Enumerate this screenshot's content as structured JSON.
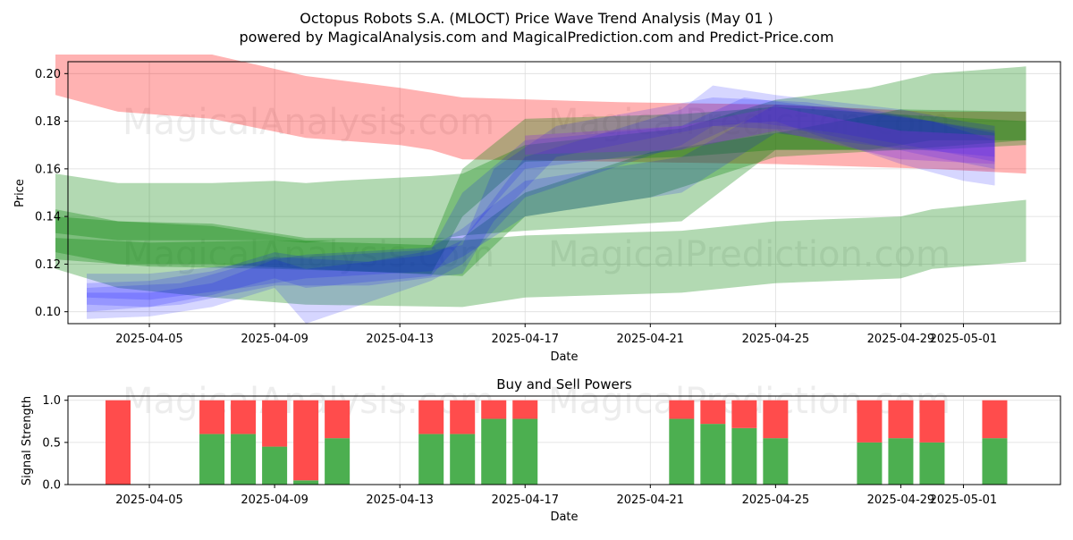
{
  "title_line1": "Octopus Robots S.A. (MLOCT) Price Wave Trend Analysis (May 01 )",
  "title_line2": "powered by MagicalAnalysis.com and MagicalPrediction.com and Predict-Price.com",
  "watermarks": [
    "MagicalAnalysis.com",
    "MagicalPrediction.com"
  ],
  "colors": {
    "red_band": "#ff0000",
    "green_band": "#008000",
    "blue_band": "#0000ff",
    "buy": "#4caf50",
    "sell": "#ff4c4c"
  },
  "chart_data": [
    {
      "type": "area",
      "xlabel": "Date",
      "ylabel": "Price",
      "x_range": [
        "2025-04-02",
        "2025-05-04"
      ],
      "ylim": [
        0.095,
        0.205
      ],
      "x_ticks": [
        "2025-04-05",
        "2025-04-09",
        "2025-04-13",
        "2025-04-17",
        "2025-04-21",
        "2025-04-25",
        "2025-04-29",
        "2025-05-01"
      ],
      "y_ticks": [
        0.1,
        0.12,
        0.14,
        0.16,
        0.18,
        0.2
      ],
      "grid": true,
      "bands": [
        {
          "color": "red",
          "x": [
            "2025-04-02",
            "2025-04-04",
            "2025-04-07",
            "2025-04-10",
            "2025-04-13",
            "2025-04-14",
            "2025-04-15",
            "2025-04-20",
            "2025-04-25",
            "2025-04-30",
            "2025-05-03"
          ],
          "upper": [
            0.208,
            0.208,
            0.208,
            0.199,
            0.194,
            0.192,
            0.19,
            0.188,
            0.187,
            0.184,
            0.184
          ],
          "lower": [
            0.191,
            0.184,
            0.181,
            0.173,
            0.17,
            0.168,
            0.164,
            0.163,
            0.162,
            0.16,
            0.158
          ]
        },
        {
          "color": "green",
          "x": [
            "2025-04-02",
            "2025-04-04",
            "2025-04-07",
            "2025-04-09",
            "2025-04-10",
            "2025-04-11",
            "2025-04-14",
            "2025-04-15",
            "2025-04-17",
            "2025-04-22",
            "2025-04-25",
            "2025-04-28",
            "2025-04-30",
            "2025-05-03"
          ],
          "upper": [
            0.158,
            0.154,
            0.154,
            0.155,
            0.154,
            0.155,
            0.157,
            0.158,
            0.17,
            0.177,
            0.189,
            0.194,
            0.2,
            0.203
          ],
          "lower": [
            0.133,
            0.13,
            0.13,
            0.13,
            0.129,
            0.13,
            0.13,
            0.132,
            0.134,
            0.138,
            0.168,
            0.168,
            0.172,
            0.172
          ]
        },
        {
          "color": "green",
          "x": [
            "2025-04-02",
            "2025-04-04",
            "2025-04-07",
            "2025-04-10",
            "2025-04-15",
            "2025-04-17",
            "2025-04-22",
            "2025-04-25",
            "2025-04-29",
            "2025-04-30",
            "2025-05-03"
          ],
          "upper": [
            0.143,
            0.138,
            0.136,
            0.13,
            0.13,
            0.132,
            0.134,
            0.138,
            0.14,
            0.143,
            0.147
          ],
          "lower": [
            0.118,
            0.11,
            0.106,
            0.103,
            0.102,
            0.106,
            0.108,
            0.112,
            0.114,
            0.118,
            0.121
          ]
        },
        {
          "color": "green",
          "x": [
            "2025-04-02",
            "2025-04-04",
            "2025-04-07",
            "2025-04-10",
            "2025-04-15",
            "2025-04-17",
            "2025-04-21",
            "2025-04-25",
            "2025-04-29",
            "2025-05-03"
          ],
          "upper": [
            0.14,
            0.138,
            0.137,
            0.131,
            0.131,
            0.15,
            0.167,
            0.175,
            0.185,
            0.184
          ],
          "lower": [
            0.125,
            0.12,
            0.12,
            0.118,
            0.115,
            0.14,
            0.148,
            0.165,
            0.168,
            0.172
          ]
        },
        {
          "color": "green",
          "x": [
            "2025-04-02",
            "2025-04-05",
            "2025-04-09",
            "2025-04-14",
            "2025-04-15",
            "2025-04-17",
            "2025-04-22",
            "2025-04-25",
            "2025-04-30",
            "2025-05-03"
          ],
          "upper": [
            0.131,
            0.129,
            0.13,
            0.128,
            0.16,
            0.181,
            0.183,
            0.186,
            0.182,
            0.18
          ],
          "lower": [
            0.122,
            0.119,
            0.118,
            0.116,
            0.14,
            0.163,
            0.165,
            0.168,
            0.168,
            0.17
          ]
        },
        {
          "color": "blue",
          "x": [
            "2025-04-03",
            "2025-04-05",
            "2025-04-07",
            "2025-04-09",
            "2025-04-10",
            "2025-04-14",
            "2025-04-15",
            "2025-04-17",
            "2025-04-22",
            "2025-04-23",
            "2025-04-25",
            "2025-04-29",
            "2025-05-01",
            "2025-05-02"
          ],
          "upper": [
            0.108,
            0.108,
            0.112,
            0.122,
            0.118,
            0.124,
            0.13,
            0.165,
            0.185,
            0.195,
            0.191,
            0.185,
            0.18,
            0.178
          ],
          "lower": [
            0.097,
            0.098,
            0.102,
            0.11,
            0.095,
            0.113,
            0.12,
            0.148,
            0.17,
            0.178,
            0.18,
            0.162,
            0.155,
            0.153
          ]
        },
        {
          "color": "blue",
          "x": [
            "2025-04-03",
            "2025-04-05",
            "2025-04-07",
            "2025-04-09",
            "2025-04-10",
            "2025-04-14",
            "2025-04-15",
            "2025-04-17",
            "2025-04-22",
            "2025-04-24",
            "2025-04-27",
            "2025-04-30",
            "2025-05-02"
          ],
          "upper": [
            0.112,
            0.113,
            0.117,
            0.125,
            0.123,
            0.126,
            0.15,
            0.172,
            0.178,
            0.19,
            0.185,
            0.18,
            0.176
          ],
          "lower": [
            0.103,
            0.102,
            0.107,
            0.114,
            0.11,
            0.115,
            0.13,
            0.16,
            0.168,
            0.18,
            0.175,
            0.168,
            0.163
          ]
        },
        {
          "color": "blue",
          "x": [
            "2025-04-03",
            "2025-04-05",
            "2025-04-08",
            "2025-04-10",
            "2025-04-14",
            "2025-04-15",
            "2025-04-17",
            "2025-04-22",
            "2025-04-25",
            "2025-04-28",
            "2025-05-02"
          ],
          "upper": [
            0.116,
            0.116,
            0.12,
            0.124,
            0.127,
            0.135,
            0.155,
            0.165,
            0.187,
            0.185,
            0.175
          ],
          "lower": [
            0.106,
            0.105,
            0.11,
            0.114,
            0.117,
            0.123,
            0.14,
            0.15,
            0.175,
            0.17,
            0.165
          ]
        },
        {
          "color": "blue",
          "x": [
            "2025-04-03",
            "2025-04-06",
            "2025-04-09",
            "2025-04-12",
            "2025-04-15",
            "2025-04-16",
            "2025-04-18",
            "2025-04-23",
            "2025-04-26",
            "2025-04-30",
            "2025-05-02"
          ],
          "upper": [
            0.11,
            0.112,
            0.123,
            0.121,
            0.128,
            0.16,
            0.178,
            0.19,
            0.188,
            0.18,
            0.172
          ],
          "lower": [
            0.1,
            0.103,
            0.111,
            0.111,
            0.116,
            0.138,
            0.165,
            0.178,
            0.176,
            0.165,
            0.16
          ]
        },
        {
          "color": "purple",
          "x": [
            "2025-04-17",
            "2025-04-22",
            "2025-04-25",
            "2025-04-29",
            "2025-05-02"
          ],
          "upper": [
            0.174,
            0.178,
            0.186,
            0.176,
            0.174
          ],
          "lower": [
            0.166,
            0.168,
            0.176,
            0.164,
            0.162
          ]
        }
      ]
    },
    {
      "type": "bar",
      "stacked": true,
      "title": "Buy and Sell Powers",
      "xlabel": "Date",
      "ylabel": "Signal Strength",
      "ylim": [
        0,
        1.05
      ],
      "y_ticks": [
        0.0,
        0.5,
        1.0
      ],
      "x_ticks": [
        "2025-04-05",
        "2025-04-09",
        "2025-04-13",
        "2025-04-17",
        "2025-04-21",
        "2025-04-25",
        "2025-04-29",
        "2025-05-01"
      ],
      "grid": true,
      "dates": [
        "2025-04-04",
        "2025-04-07",
        "2025-04-08",
        "2025-04-09",
        "2025-04-10",
        "2025-04-11",
        "2025-04-14",
        "2025-04-15",
        "2025-04-16",
        "2025-04-17",
        "2025-04-22",
        "2025-04-23",
        "2025-04-24",
        "2025-04-25",
        "2025-04-28",
        "2025-04-29",
        "2025-04-30",
        "2025-05-02"
      ],
      "buy": [
        0.0,
        0.6,
        0.6,
        0.45,
        0.05,
        0.55,
        0.6,
        0.6,
        0.78,
        0.78,
        0.78,
        0.72,
        0.67,
        0.55,
        0.5,
        0.55,
        0.5,
        0.55
      ],
      "sell": [
        1.0,
        0.4,
        0.4,
        0.55,
        0.95,
        0.45,
        0.4,
        0.4,
        0.22,
        0.22,
        0.22,
        0.28,
        0.33,
        0.45,
        0.5,
        0.45,
        0.5,
        0.45
      ]
    }
  ]
}
